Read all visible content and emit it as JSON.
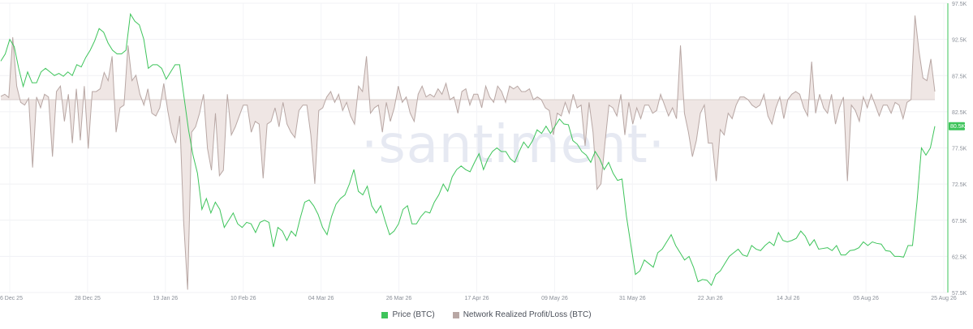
{
  "chart_data": {
    "type": "line",
    "watermark": "·santiment·",
    "x_ticks": [
      "06 Dec 25",
      "28 Dec 25",
      "19 Jan 26",
      "10 Feb 26",
      "04 Mar 26",
      "26 Mar 26",
      "17 Apr 26",
      "09 May 26",
      "31 May 26",
      "22 Jun 26",
      "14 Jul 26",
      "05 Aug 26",
      "25 Aug 26"
    ],
    "y_right_ticks": [
      "97.5K",
      "92.5K",
      "87.5K",
      "82.5K",
      "77.5K",
      "72.5K",
      "67.5K",
      "62.5K",
      "57.5K"
    ],
    "ylim_price": [
      57500,
      97500
    ],
    "current_price_label": "80.5K",
    "colors": {
      "price": "#3ec45b",
      "profit_loss": "#b8a7a4",
      "fill": "#efe6e4",
      "axis": "#3ec45b"
    },
    "series": [
      {
        "name": "Price (BTC)",
        "values": [
          89500,
          90500,
          92500,
          91500,
          88500,
          86000,
          88000,
          86500,
          86500,
          88000,
          88500,
          88000,
          87500,
          87800,
          87400,
          88000,
          87500,
          89000,
          88700,
          90000,
          91000,
          92300,
          94000,
          93500,
          92000,
          91000,
          90500,
          90500,
          91000,
          96000,
          95000,
          94500,
          92500,
          88500,
          89000,
          89000,
          88500,
          87000,
          88000,
          89000,
          89000,
          84500,
          80000,
          76500,
          74000,
          69000,
          70500,
          68500,
          70000,
          69000,
          66500,
          67500,
          68500,
          67000,
          66500,
          67200,
          67000,
          65800,
          67200,
          67500,
          67200,
          63800,
          66500,
          66000,
          64700,
          66000,
          65300,
          67800,
          70000,
          70300,
          69500,
          68300,
          66500,
          65500,
          68000,
          69700,
          70500,
          71000,
          72500,
          74500,
          71500,
          71000,
          72200,
          69500,
          68500,
          69500,
          67400,
          65500,
          66000,
          67000,
          69000,
          69500,
          67000,
          67000,
          68000,
          68700,
          68500,
          70000,
          71000,
          72500,
          71500,
          73500,
          74500,
          75000,
          74500,
          74200,
          75500,
          76700,
          74500,
          76000,
          77000,
          77500,
          77000,
          77000,
          76000,
          75500,
          77000,
          78300,
          77500,
          78500,
          80000,
          79500,
          80500,
          79500,
          80500,
          81500,
          80800,
          80700,
          78500,
          78000,
          77000,
          76500,
          75500,
          77000,
          76000,
          74500,
          75500,
          74000,
          73000,
          73200,
          68000,
          64000,
          60000,
          60500,
          62000,
          61500,
          61000,
          63000,
          63500,
          64500,
          65500,
          64000,
          63000,
          62000,
          62500,
          61000,
          59000,
          59300,
          59200,
          58500,
          60000,
          60500,
          61500,
          62500,
          63000,
          63500,
          62700,
          62500,
          64000,
          63500,
          63300,
          64000,
          64500,
          64000,
          65800,
          64700,
          64500,
          64700,
          65000,
          66000,
          65300,
          64000,
          64800,
          63500,
          63600,
          63700,
          63300,
          64000,
          62700,
          62700,
          63300,
          63400,
          63700,
          64500,
          64000,
          64500,
          64300,
          64200,
          63300,
          63200,
          62500,
          62500,
          62400,
          64000,
          64000,
          70000,
          77500,
          76500,
          77500,
          80500
        ]
      },
      {
        "name": "Network Realized Profit/Loss (BTC)",
        "values": [
          0.12,
          0.2,
          0.08,
          2.3,
          0.5,
          -0.1,
          -0.2,
          0.05,
          -2.5,
          0.1,
          -0.3,
          0.2,
          0.1,
          -2.1,
          0.3,
          0.5,
          -0.8,
          0.2,
          -1.6,
          0.4,
          -1.5,
          0.5,
          -1.8,
          0.3,
          0.3,
          0.4,
          1.0,
          0.7,
          1.6,
          -1.2,
          -0.3,
          -0.2,
          2.0,
          0.7,
          0.9,
          0.2,
          -0.2,
          0.4,
          -0.5,
          -0.6,
          -0.3,
          0.6,
          -0.4,
          -1.2,
          -1.6,
          -0.6,
          -4.5,
          -7.0,
          -1.2,
          -1.0,
          -0.5,
          0.2,
          -1.8,
          -2.6,
          -0.5,
          -2.8,
          -2.6,
          0.2,
          -1.3,
          -1.0,
          -0.6,
          -0.2,
          -0.2,
          -1.2,
          -0.8,
          -0.9,
          -2.9,
          -0.9,
          -0.8,
          -0.3,
          -1.0,
          -0.1,
          -0.9,
          -1.2,
          -1.4,
          -0.4,
          -0.2,
          -0.2,
          -1.3,
          -3.1,
          -0.4,
          -0.3,
          0.1,
          0.3,
          -0.1,
          0.2,
          -0.4,
          -0.1,
          -0.6,
          -0.9,
          0.5,
          0.3,
          1.6,
          -0.5,
          -0.3,
          -0.2,
          -1.2,
          -0.1,
          -0.8,
          -0.3,
          0.5,
          -0.1,
          0.1,
          -0.5,
          -0.8,
          0.2,
          0.5,
          0.1,
          0.2,
          0.1,
          0.4,
          0.2,
          0.6,
          0.0,
          0.1,
          -0.5,
          0.3,
          0.4,
          -0.2,
          0.2,
          0.2,
          -0.3,
          0.5,
          0.1,
          -0.1,
          0.5,
          0.3,
          -0.1,
          0.5,
          0.4,
          0.5,
          0.3,
          0.3,
          0.4,
          0.0,
          0.1,
          0.0,
          -0.3,
          -0.4,
          -1.3,
          -0.5,
          -0.6,
          -0.1,
          -0.5,
          0.2,
          -0.3,
          -0.2,
          -1.7,
          -0.1,
          -1.2,
          -3.3,
          -3.1,
          -1.6,
          -0.2,
          -0.3,
          -0.6,
          0.2,
          -1.3,
          -0.1,
          -0.9,
          -0.3,
          -0.7,
          -0.2,
          -0.2,
          -0.5,
          -0.4,
          0.2,
          -0.2,
          -0.6,
          -0.3,
          -0.7,
          2.0,
          -0.5,
          -1.2,
          -2.1,
          -1.5,
          -0.5,
          -0.2,
          -1.6,
          -1.6,
          -3.0,
          -1.1,
          -1.3,
          -0.5,
          -0.7,
          -0.2,
          0.1,
          0.1,
          0.0,
          -0.2,
          -0.3,
          -0.2,
          0.2,
          -0.6,
          -0.9,
          -0.3,
          0.1,
          -0.7,
          0.0,
          0.2,
          0.3,
          0.2,
          -0.3,
          -0.6,
          1.4,
          -0.5,
          0.2,
          -0.3,
          -0.5,
          0.2,
          -0.9,
          -0.3,
          0.1,
          -3.0,
          -0.2,
          -0.4,
          -0.8,
          0.1,
          -0.3,
          0.2,
          -0.2,
          -0.6,
          -0.2,
          -0.2,
          -0.5,
          -0.1,
          -0.2,
          -0.7,
          -0.1,
          0.0,
          3.1,
          1.8,
          0.8,
          0.7,
          1.5,
          0.3
        ]
      }
    ],
    "legend": [
      {
        "label": "Price (BTC)",
        "color": "#3ec45b"
      },
      {
        "label": "Network Realized Profit/Loss (BTC)",
        "color": "#b8a7a4"
      }
    ],
    "legend_placement": "bottom-center",
    "grid": true
  }
}
